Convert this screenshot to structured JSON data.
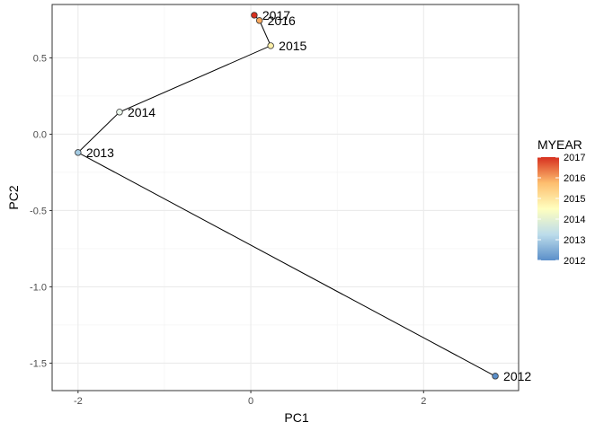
{
  "chart_data": {
    "type": "scatter",
    "xlabel": "PC1",
    "ylabel": "PC2",
    "xlim": [
      -2.3,
      3.1
    ],
    "ylim": [
      -1.68,
      0.85
    ],
    "x_ticks": [
      -2,
      0,
      2
    ],
    "y_ticks": [
      -1.5,
      -1.0,
      -0.5,
      0.0,
      0.5
    ],
    "x_tick_labels": [
      "-2",
      "0",
      "2"
    ],
    "y_tick_labels": [
      "-1.5",
      "-1.0",
      "-0.5",
      "0.0",
      "0.5"
    ],
    "grid": true,
    "connect_points": true,
    "points": [
      {
        "label": "2012",
        "year": 2012,
        "x": 2.83,
        "y": -1.585
      },
      {
        "label": "2013",
        "year": 2013,
        "x": -2.0,
        "y": -0.12
      },
      {
        "label": "2014",
        "year": 2014,
        "x": -1.52,
        "y": 0.145
      },
      {
        "label": "2015",
        "year": 2015,
        "x": 0.23,
        "y": 0.58
      },
      {
        "label": "2016",
        "year": 2016,
        "x": 0.1,
        "y": 0.745
      },
      {
        "label": "2017",
        "year": 2017,
        "x": 0.04,
        "y": 0.78
      }
    ],
    "legend": {
      "title": "MYEAR",
      "position": "right",
      "range": [
        2012,
        2017
      ],
      "labels": [
        "2017",
        "2016",
        "2015",
        "2014",
        "2013",
        "2012"
      ],
      "colors": [
        "#d7301f",
        "#f5a05a",
        "#ffffbf",
        "#cfe6f0",
        "#6a98cc"
      ]
    }
  }
}
